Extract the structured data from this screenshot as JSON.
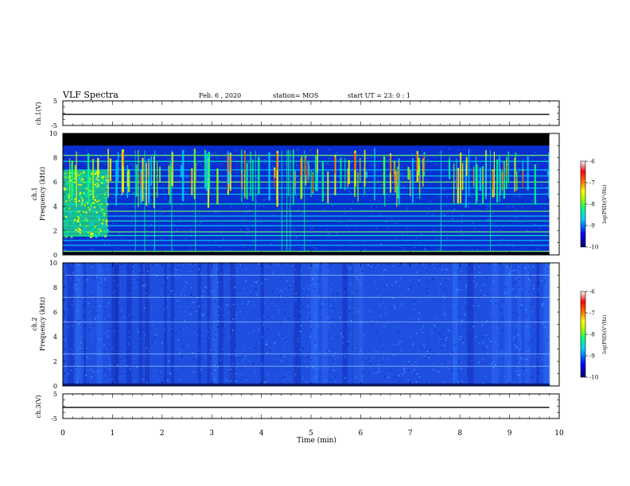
{
  "header": {
    "title": "VLF Spectra",
    "date": "Feb. 6 , 2020",
    "station": "station= MOS",
    "start": "start UT =  23: 0  : 1"
  },
  "colors": {
    "background": "#ffffff",
    "trace": "#000000",
    "ch1_base": "#0a2fd0",
    "ch2_base": "#1f4fe0",
    "colormap": [
      "#00006a",
      "#0000ff",
      "#00c8ff",
      "#00ff80",
      "#a0ff00",
      "#ffff00",
      "#ff8000",
      "#ff0000",
      "#ffffff"
    ]
  },
  "chart_data": [
    {
      "type": "line",
      "panel": "ch1-voltage",
      "ylabel": "ch.1(V)",
      "ylim": [
        -5,
        5
      ],
      "yticks": [
        "5",
        "-5"
      ],
      "x": [
        0,
        9.8
      ],
      "values": [
        -0.5,
        -0.5
      ]
    },
    {
      "type": "heatmap",
      "panel": "ch1-spectrogram",
      "ylabel": "ch.1\nFrequency (kHz)",
      "ylim": [
        0,
        10
      ],
      "yticks": [
        "0",
        "2",
        "4",
        "6",
        "8",
        "10"
      ],
      "xlim": [
        0,
        10
      ],
      "colorbar": {
        "label": "log(PSD)(V²/Hz)",
        "ticks": [
          "-6",
          "-7",
          "-8",
          "-9",
          "-10"
        ],
        "range": [
          -10,
          -6
        ]
      },
      "features": {
        "cutoff_khz": 9.0,
        "broadband_noise": {
          "x": [
            0,
            0.9
          ],
          "freq_khz": [
            1.5,
            7.0
          ]
        },
        "tone_lines_khz": [
          0.3,
          0.8,
          1.2,
          1.6,
          1.9,
          2.4,
          2.8,
          3.2,
          3.6,
          4.2,
          5.0,
          5.5,
          6.0,
          6.5,
          7.0,
          7.7,
          8.2
        ]
      }
    },
    {
      "type": "heatmap",
      "panel": "ch2-spectrogram",
      "ylabel": "ch.2\nFrequency (kHz)",
      "ylim": [
        0,
        10
      ],
      "yticks": [
        "0",
        "2",
        "4",
        "6",
        "8",
        "10"
      ],
      "xlim": [
        0,
        10
      ],
      "colorbar": {
        "label": "log(PSD)(V²/Hz)",
        "ticks": [
          "-6",
          "-7",
          "-8",
          "-9",
          "-10"
        ],
        "range": [
          -10,
          -6
        ]
      },
      "features": {
        "tone_lines_khz": [
          1.6,
          2.6,
          5.2,
          7.2,
          9.0
        ]
      }
    },
    {
      "type": "line",
      "panel": "ch3-voltage",
      "ylabel": "ch.3(V)",
      "ylim": [
        -5,
        5
      ],
      "yticks": [
        "5",
        "-5"
      ],
      "x": [
        0,
        9.8
      ],
      "values": [
        -0.5,
        -0.5
      ]
    }
  ],
  "xaxis": {
    "label": "Time (min)",
    "ticks": [
      "0",
      "1",
      "2",
      "3",
      "4",
      "5",
      "6",
      "7",
      "8",
      "9",
      "10"
    ],
    "range": [
      0,
      10
    ]
  }
}
